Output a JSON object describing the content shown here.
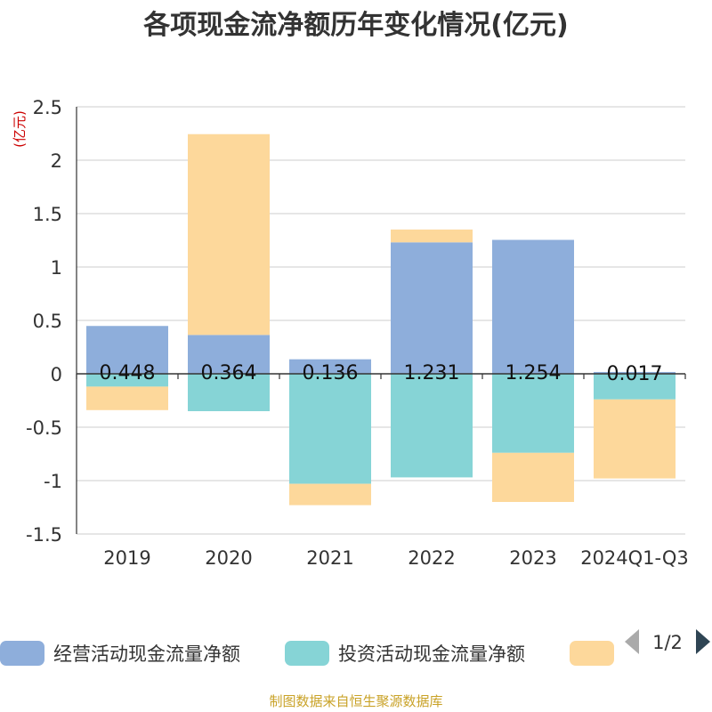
{
  "chart_data": {
    "type": "bar",
    "stacked": true,
    "title": "各项现金流净额历年变化情况(亿元)",
    "y_unit": "(亿元)",
    "categories": [
      "2019",
      "2020",
      "2021",
      "2022",
      "2023",
      "2024Q1-Q3"
    ],
    "ylim": [
      -1.5,
      2.5
    ],
    "yticks": [
      2.5,
      2,
      1.5,
      1,
      0.5,
      0,
      -0.5,
      -1,
      -1.5
    ],
    "ytick_labels": [
      "2.5",
      "2",
      "1.5",
      "1",
      "0.5",
      "0",
      "-0.5",
      "-1",
      "-1.5"
    ],
    "grid": true,
    "legend_position": "bottom",
    "series": [
      {
        "name": "经营活动现金流量净额",
        "color": "#8eaedb",
        "values": [
          0.448,
          0.364,
          0.136,
          1.231,
          1.254,
          0.017
        ],
        "labels": [
          "0.448",
          "0.364",
          "0.136",
          "1.231",
          "1.254",
          "0.017"
        ]
      },
      {
        "name": "投资活动现金流量净额",
        "color": "#86d4d6",
        "values": [
          -0.12,
          -0.35,
          -1.03,
          -0.97,
          -0.74,
          -0.24
        ]
      },
      {
        "name": "",
        "color": "#fdd89b",
        "values": [
          -0.22,
          1.88,
          -0.2,
          0.12,
          -0.46,
          -0.74
        ]
      }
    ],
    "legend_pager": "1/2",
    "source": "制图数据来自恒生聚源数据库"
  }
}
